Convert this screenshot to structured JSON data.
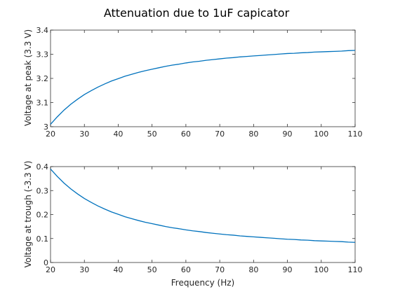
{
  "chart_data": [
    {
      "type": "line",
      "title": "Attenuation due to 1uF capicator",
      "xlabel": "",
      "ylabel": "Voltage at peak (3.3 V)",
      "xlim": [
        20,
        110
      ],
      "ylim": [
        3,
        3.4
      ],
      "xticks": [
        20,
        30,
        40,
        50,
        60,
        70,
        80,
        90,
        100,
        110
      ],
      "yticks": [
        3,
        3.1,
        3.2,
        3.3,
        3.4
      ],
      "grid": false,
      "series": [
        {
          "color": "#0072bd",
          "x": [
            20,
            22,
            24,
            26,
            28,
            30,
            32,
            34,
            36,
            38,
            40,
            42,
            44,
            46,
            48,
            50,
            52,
            54,
            56,
            58,
            60,
            62,
            64,
            66,
            68,
            70,
            72,
            74,
            76,
            78,
            80,
            82,
            84,
            86,
            88,
            90,
            92,
            94,
            96,
            98,
            100,
            102,
            104,
            106,
            108,
            110
          ],
          "y": [
            3.01,
            3.041,
            3.069,
            3.093,
            3.114,
            3.133,
            3.149,
            3.164,
            3.177,
            3.189,
            3.199,
            3.209,
            3.217,
            3.225,
            3.232,
            3.238,
            3.244,
            3.25,
            3.255,
            3.259,
            3.264,
            3.268,
            3.271,
            3.275,
            3.278,
            3.281,
            3.284,
            3.286,
            3.289,
            3.291,
            3.293,
            3.295,
            3.297,
            3.299,
            3.301,
            3.303,
            3.304,
            3.306,
            3.307,
            3.309,
            3.31,
            3.311,
            3.312,
            3.313,
            3.315,
            3.316
          ]
        }
      ]
    },
    {
      "type": "line",
      "title": "",
      "xlabel": "Frequency (Hz)",
      "ylabel": "Voltage at trough (-3.3 V)",
      "xlim": [
        20,
        110
      ],
      "ylim": [
        0,
        0.4
      ],
      "xticks": [
        20,
        30,
        40,
        50,
        60,
        70,
        80,
        90,
        100,
        110
      ],
      "yticks": [
        0,
        0.1,
        0.2,
        0.3,
        0.4
      ],
      "grid": false,
      "series": [
        {
          "color": "#0072bd",
          "x": [
            20,
            22,
            24,
            26,
            28,
            30,
            32,
            34,
            36,
            38,
            40,
            42,
            44,
            46,
            48,
            50,
            52,
            54,
            56,
            58,
            60,
            62,
            64,
            66,
            68,
            70,
            72,
            74,
            76,
            78,
            80,
            82,
            84,
            86,
            88,
            90,
            92,
            94,
            96,
            98,
            100,
            102,
            104,
            106,
            108,
            110
          ],
          "y": [
            0.39,
            0.359,
            0.331,
            0.307,
            0.286,
            0.267,
            0.251,
            0.236,
            0.223,
            0.211,
            0.201,
            0.191,
            0.183,
            0.175,
            0.168,
            0.162,
            0.156,
            0.15,
            0.145,
            0.141,
            0.136,
            0.132,
            0.129,
            0.125,
            0.122,
            0.119,
            0.116,
            0.114,
            0.111,
            0.109,
            0.107,
            0.105,
            0.103,
            0.101,
            0.099,
            0.097,
            0.096,
            0.094,
            0.093,
            0.091,
            0.09,
            0.089,
            0.088,
            0.087,
            0.085,
            0.084
          ]
        }
      ]
    }
  ]
}
